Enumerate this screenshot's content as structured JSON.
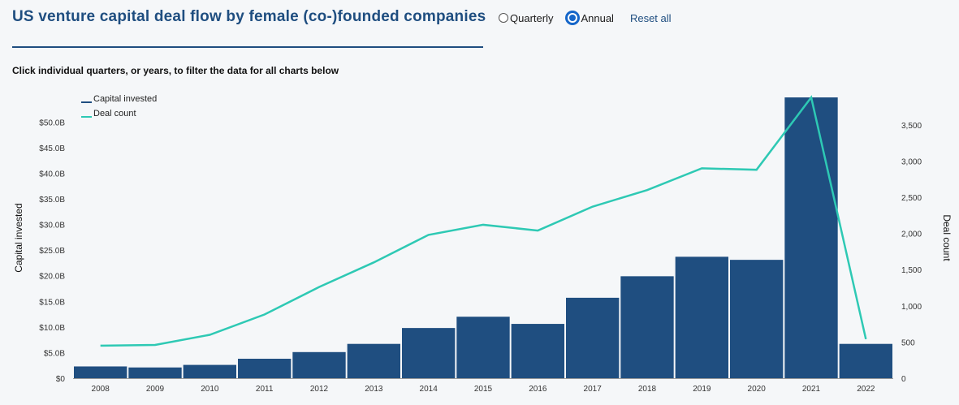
{
  "header": {
    "title": "US venture capital deal flow by female (co-)founded companies",
    "subtitle": "Click individual quarters, or years, to filter the data for all charts below"
  },
  "controls": {
    "quarterly_label": "Quarterly",
    "annual_label": "Annual",
    "selected": "Annual",
    "reset_label": "Reset all"
  },
  "colors": {
    "bar": "#1f4e80",
    "line": "#2ec9b4",
    "accent": "#1f4e80"
  },
  "chart_data": {
    "type": "bar+line",
    "categories": [
      "2008",
      "2009",
      "2010",
      "2011",
      "2012",
      "2013",
      "2014",
      "2015",
      "2016",
      "2017",
      "2018",
      "2019",
      "2020",
      "2021",
      "2022"
    ],
    "series": [
      {
        "name": "Capital invested",
        "type": "bar",
        "axis": "left",
        "values": [
          2.3,
          2.1,
          2.6,
          3.8,
          5.1,
          6.7,
          9.8,
          12.0,
          10.6,
          15.7,
          19.9,
          23.7,
          23.1,
          54.8,
          6.7
        ]
      },
      {
        "name": "Deal count",
        "type": "line",
        "axis": "right",
        "values": [
          450,
          460,
          600,
          880,
          1260,
          1600,
          1980,
          2120,
          2040,
          2370,
          2600,
          2900,
          2880,
          3880,
          540
        ]
      }
    ],
    "yLeft": {
      "label": "Capital invested",
      "ticks": [
        "$0",
        "$5.0B",
        "$10.0B",
        "$15.0B",
        "$20.0B",
        "$25.0B",
        "$30.0B",
        "$35.0B",
        "$40.0B",
        "$45.0B",
        "$50.0B"
      ],
      "tick_values": [
        0,
        5,
        10,
        15,
        20,
        25,
        30,
        35,
        40,
        45,
        50
      ],
      "range": [
        0,
        54.8
      ]
    },
    "yRight": {
      "label": "Deal count",
      "ticks": [
        "0",
        "500",
        "1,000",
        "1,500",
        "2,000",
        "2,500",
        "3,000",
        "3,500"
      ],
      "tick_values": [
        0,
        500,
        1000,
        1500,
        2000,
        2500,
        3000,
        3500
      ],
      "range": [
        0,
        3880
      ]
    },
    "legend": [
      {
        "label": "Capital invested",
        "kind": "bar"
      },
      {
        "label": "Deal count",
        "kind": "line"
      }
    ],
    "legend_position": "top-left",
    "grid": false
  }
}
